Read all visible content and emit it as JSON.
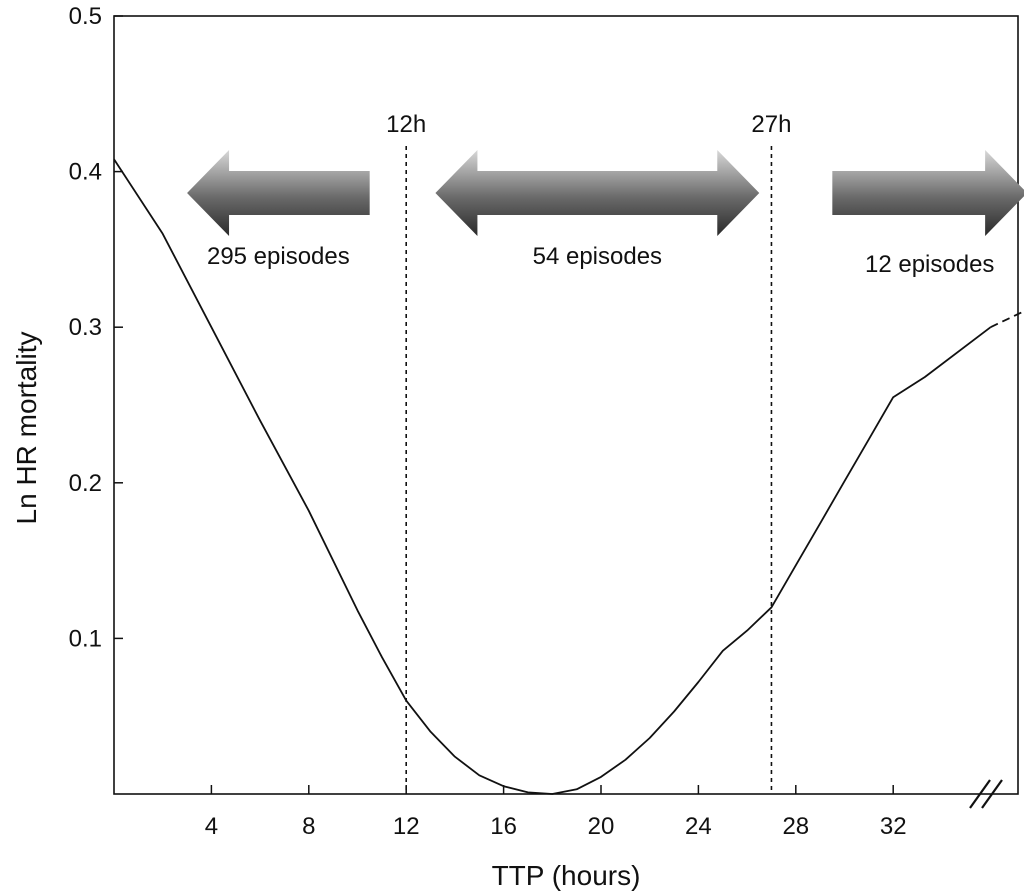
{
  "chart_data": {
    "type": "line",
    "xlabel": "TTP (hours)",
    "ylabel": "Ln HR mortality",
    "xlim": [
      0,
      38
    ],
    "ylim": [
      0,
      0.5
    ],
    "x_ticks": [
      4,
      8,
      12,
      16,
      20,
      24,
      28,
      32
    ],
    "y_ticks": [
      0.1,
      0.2,
      0.3,
      0.4,
      0.5
    ],
    "x_axis_break": true,
    "grid": false,
    "series": [
      {
        "style": "solid",
        "color": "#111111",
        "points": [
          [
            0,
            0.408
          ],
          [
            2,
            0.36
          ],
          [
            4,
            0.3
          ],
          [
            6,
            0.24
          ],
          [
            8,
            0.182
          ],
          [
            10,
            0.118
          ],
          [
            11,
            0.088
          ],
          [
            12,
            0.06
          ],
          [
            13,
            0.04
          ],
          [
            14,
            0.024
          ],
          [
            15,
            0.012
          ],
          [
            16,
            0.005
          ],
          [
            17,
            0.001
          ],
          [
            18,
            0.0
          ],
          [
            19,
            0.003
          ],
          [
            20,
            0.011
          ],
          [
            21,
            0.022
          ],
          [
            22,
            0.036
          ],
          [
            23,
            0.053
          ],
          [
            24,
            0.072
          ],
          [
            25,
            0.092
          ],
          [
            26,
            0.105
          ],
          [
            27,
            0.12
          ],
          [
            28,
            0.147
          ],
          [
            29,
            0.174
          ],
          [
            30,
            0.201
          ],
          [
            31,
            0.228
          ],
          [
            32,
            0.255
          ],
          [
            33.3,
            0.268
          ],
          [
            36,
            0.3
          ]
        ]
      },
      {
        "style": "dashed",
        "color": "#111111",
        "points": [
          [
            36,
            0.3
          ],
          [
            38,
            0.315
          ]
        ]
      }
    ],
    "reference_lines": [
      {
        "x": 12,
        "label": "12h"
      },
      {
        "x": 27,
        "label": "27h"
      }
    ],
    "regions": [
      {
        "label": "295 episodes",
        "direction": "left",
        "from": 3,
        "to": 10.5
      },
      {
        "label": "54 episodes",
        "direction": "both",
        "from": 13.2,
        "to": 26.5
      },
      {
        "label": "12 episodes",
        "direction": "right",
        "from": 29.5,
        "to": 37.5
      }
    ]
  }
}
